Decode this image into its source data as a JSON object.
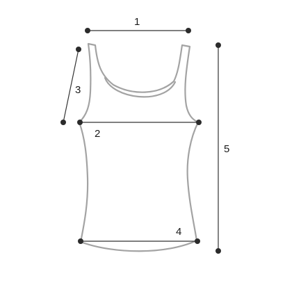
{
  "measurements": [
    {
      "label": "1"
    },
    {
      "label": "2"
    },
    {
      "label": "3"
    },
    {
      "label": "4"
    },
    {
      "label": "5"
    }
  ],
  "colors": {
    "garment_outline": "#a3a3a3",
    "measure_line": "#333333",
    "measure_point": "#2b2b2b",
    "label_text": "#1a1a1a",
    "background": "#ffffff"
  }
}
